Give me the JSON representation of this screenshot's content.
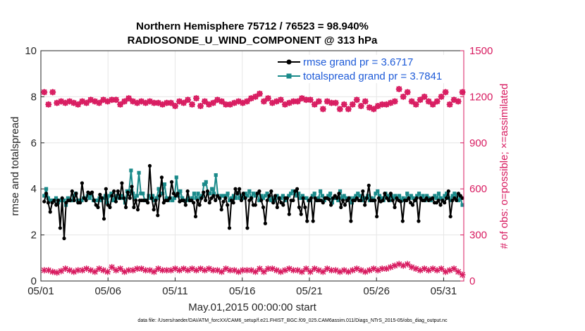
{
  "chart_data": {
    "type": "line",
    "title_line1": "Northern Hemisphere 75712 / 76523 = 98.940%",
    "title_line2": "RADIOSONDE_U_WIND_COMPONENT @ 313 hPa",
    "xlabel": "May.01,2015 00:00:00 start",
    "ylabel_left": "rmse and totalspread",
    "ylabel_right": "# of obs: o=possible; ×=assimilated",
    "footnote": "data file: /Users/raeder/DAI/ATM_forcXX/CAM6_setup/f.e21.FHIST_BGC.f09_025.CAM6assim.011/Diags_NTrS_2015-05/obs_diag_output.nc",
    "xlim": [
      0,
      31.5
    ],
    "ylim_left": [
      0,
      10
    ],
    "ylim_right": [
      0,
      1500
    ],
    "x_ticks": [
      0,
      5,
      10,
      15,
      20,
      25,
      30
    ],
    "x_tick_labels": [
      "05/01",
      "05/06",
      "05/11",
      "05/16",
      "05/21",
      "05/26",
      "05/31"
    ],
    "y_ticks_left": [
      "0",
      "2",
      "4",
      "6",
      "8",
      "10"
    ],
    "y_ticks_right": [
      "0",
      "300",
      "600",
      "900",
      "1200",
      "1500"
    ],
    "colors": {
      "rmse": "#000000",
      "spread": "#1a8a8a",
      "obs": "#d81b60",
      "legend_text": "#1e5bd8",
      "grid": "#e6e6e6"
    },
    "series": [
      {
        "name": "rmse grand pr = 3.6717",
        "axis": "left",
        "values": [
          3.45,
          3.8,
          3.4,
          3.0,
          3.4,
          3.5,
          3.3,
          3.5,
          2.3,
          3.6,
          1.85,
          3.4,
          3.5,
          3.5,
          3.9,
          3.5,
          3.8,
          3.4,
          3.4,
          4.25,
          3.6,
          3.5,
          3.85,
          3.8,
          3.85,
          3.5,
          3.3,
          3.2,
          3.75,
          3.6,
          2.7,
          4.0,
          3.3,
          3.2,
          3.7,
          3.9,
          3.45,
          3.9,
          3.6,
          4.25,
          3.6,
          3.2,
          3.85,
          3.6,
          4.1,
          3.2,
          3.5,
          3.1,
          3.5,
          3.5,
          3.5,
          3.5,
          3.4,
          5.0,
          3.6,
          3.1,
          3.5,
          2.85,
          3.7,
          4.5,
          3.4,
          3.5,
          3.5,
          3.6,
          4.3,
          3.8,
          3.7,
          3.8,
          3.45,
          3.5,
          3.5,
          3.3,
          3.9,
          3.5,
          3.5,
          3.4,
          2.8,
          3.5,
          3.3,
          3.6,
          3.85,
          3.5,
          3.9,
          3.4,
          3.6,
          3.7,
          3.5,
          3.7,
          3.6,
          3.1,
          3.45,
          3.6,
          3.3,
          2.3,
          3.5,
          3.4,
          4.0,
          3.8,
          4.0,
          3.5,
          3.8,
          3.6,
          2.3,
          3.5,
          3.6,
          3.3,
          3.3,
          3.8,
          3.9,
          3.5,
          3.2,
          2.5,
          3.5,
          3.7,
          3.9,
          3.4,
          3.7,
          3.2,
          3.6,
          3.4,
          3.3,
          3.6,
          3.6,
          2.9,
          3.5,
          3.5,
          3.9,
          4.0,
          3.2,
          2.9,
          3.6,
          3.2,
          2.6,
          3.5,
          3.6,
          2.6,
          3.6,
          3.5,
          3.5,
          3.5,
          3.4,
          3.6,
          3.6,
          3.55,
          3.3,
          3.6,
          3.7,
          3.6,
          3.8,
          3.2,
          3.5,
          3.3,
          3.5,
          3.6,
          2.6,
          3.5,
          3.5,
          3.6,
          3.5,
          3.5,
          3.9,
          3.3,
          3.6,
          4.15,
          3.5,
          3.5,
          3.5,
          2.8,
          3.6,
          3.45,
          3.5,
          3.8,
          3.6,
          3.5,
          3.8,
          3.5,
          3.2,
          3.6,
          3.5,
          3.45,
          2.6,
          3.5,
          3.5,
          3.6,
          3.4,
          3.3,
          3.5,
          3.6,
          2.6,
          3.6,
          3.5,
          3.5,
          3.6,
          3.5,
          3.55,
          3.6,
          3.4,
          3.4,
          3.5,
          3.3,
          3.5,
          3.4,
          3.6,
          3.9,
          2.8,
          3.5,
          3.6,
          3.5,
          3.8,
          3.7,
          3.6
        ]
      },
      {
        "name": "totalspread grand pr = 3.7841",
        "axis": "left",
        "values": [
          3.7,
          4.0,
          3.6,
          3.5,
          3.5,
          3.5,
          3.6,
          3.4,
          3.5,
          3.5,
          3.5,
          3.3,
          3.6,
          3.5,
          3.5,
          3.7,
          3.8,
          3.5,
          3.5,
          3.5,
          3.6,
          3.6,
          3.7,
          3.6,
          3.8,
          3.5,
          3.5,
          3.5,
          3.6,
          3.5,
          3.6,
          3.7,
          3.4,
          3.7,
          3.8,
          3.5,
          3.6,
          3.7,
          3.6,
          3.7,
          3.6,
          3.4,
          3.9,
          3.9,
          4.8,
          3.8,
          3.6,
          3.7,
          4.7,
          3.8,
          3.8,
          3.5,
          3.5,
          3.7,
          3.6,
          3.7,
          3.5,
          3.6,
          4.0,
          3.8,
          3.8,
          4.2,
          3.6,
          3.5,
          3.6,
          3.5,
          3.6,
          4.5,
          3.7,
          3.9,
          3.6,
          3.5,
          3.5,
          3.6,
          3.5,
          3.6,
          3.8,
          3.6,
          3.8,
          3.6,
          3.7,
          4.2,
          4.3,
          3.8,
          3.8,
          4.0,
          3.8,
          4.6,
          3.7,
          3.6,
          3.7,
          3.7,
          3.7,
          3.8,
          3.5,
          3.6,
          3.7,
          3.6,
          3.8,
          3.6,
          3.7,
          3.6,
          3.8,
          3.7,
          3.9,
          3.6,
          3.8,
          3.7,
          3.8,
          3.5,
          3.7,
          3.6,
          3.7,
          3.8,
          3.6,
          3.5,
          3.6,
          3.5,
          3.7,
          3.6,
          3.6,
          3.7,
          3.5,
          3.6,
          3.7,
          3.8,
          3.9,
          3.8,
          3.7,
          3.8,
          3.6,
          3.7,
          3.6,
          3.6,
          3.5,
          3.5,
          3.7,
          3.8,
          3.5,
          3.6,
          3.9,
          3.7,
          3.5,
          3.6,
          3.7,
          3.8,
          3.4,
          3.6,
          3.6,
          3.5,
          3.9,
          3.6,
          3.7,
          3.6,
          3.5,
          3.6,
          3.4,
          3.6,
          3.7,
          3.8,
          3.7,
          3.5,
          3.6,
          3.6,
          3.7,
          3.5,
          3.6,
          3.5,
          3.8,
          3.9,
          3.7,
          3.6,
          3.5,
          3.8,
          3.7,
          3.5,
          3.7,
          3.6,
          3.7,
          3.6,
          3.7,
          3.5,
          3.6,
          3.5,
          3.8,
          3.6,
          3.7,
          3.6,
          3.5,
          3.7,
          3.8,
          3.6,
          3.7,
          3.5,
          3.7,
          3.6,
          3.5,
          3.6,
          3.7,
          3.6,
          3.8,
          3.6,
          3.5,
          3.7,
          3.8,
          3.6,
          3.5,
          3.7,
          3.8,
          3.7,
          3.5,
          3.6,
          3.3
        ]
      },
      {
        "name": "obs possible",
        "axis": "right",
        "values": [
          1230,
          1150,
          1230,
          1160,
          1170,
          1160,
          1170,
          1160,
          1150,
          1170,
          1160,
          1180,
          1170,
          1160,
          1180,
          1170,
          1180,
          1180,
          1150,
          1170,
          1190,
          1170,
          1160,
          1170,
          1160,
          1170,
          1160,
          1160,
          1150,
          1160,
          1160,
          1140,
          1170,
          1160,
          1180,
          1150,
          1190,
          1140,
          1170,
          1150,
          1160,
          1180,
          1170,
          1150,
          1150,
          1160,
          1170,
          1160,
          1170,
          1190,
          1200,
          1220,
          1170,
          1190,
          1160,
          1170,
          1180,
          1150,
          1160,
          1170,
          1170,
          1190,
          1180,
          1180,
          1150,
          1170,
          1120,
          1170,
          1160,
          1160,
          1120,
          1150,
          1120,
          1150,
          1180,
          1140,
          1170,
          1130,
          1120,
          1140,
          1150,
          1150,
          1160,
          1170,
          1250,
          1200,
          1230,
          1170,
          1150,
          1180,
          1200,
          1170,
          1150,
          1170,
          1200,
          1230,
          1150,
          1180,
          1170,
          1230
        ]
      },
      {
        "name": "obs assimilated",
        "axis": "right",
        "values": [
          70,
          70,
          60,
          55,
          65,
          80,
          70,
          60,
          70,
          70,
          80,
          70,
          60,
          80,
          70,
          60,
          90,
          70,
          80,
          60,
          70,
          70,
          80,
          80,
          70,
          70,
          60,
          80,
          70,
          70,
          70,
          80,
          70,
          80,
          70,
          80,
          70,
          80,
          70,
          80,
          70,
          70,
          60,
          80,
          70,
          70,
          60,
          70,
          70,
          70,
          60,
          80,
          60,
          80,
          80,
          70,
          60,
          70,
          80,
          70,
          70,
          60,
          80,
          60,
          80,
          70,
          60,
          80,
          70,
          70,
          60,
          70,
          60,
          70,
          80,
          70,
          60,
          70,
          80,
          70,
          80,
          80,
          90,
          100,
          110,
          100,
          110,
          90,
          80,
          70,
          80,
          70,
          80,
          70,
          80,
          60,
          70,
          80,
          60,
          40
        ]
      }
    ]
  }
}
